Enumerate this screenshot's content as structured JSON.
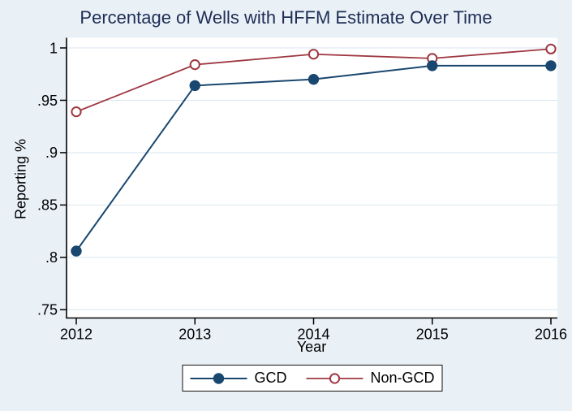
{
  "figure": {
    "background_color": "#e9f1f7",
    "plot_background": "#ffffff",
    "grid_color": "#d9e6f0",
    "axis_color": "#000000",
    "title_color": "#1e2d55"
  },
  "chart_data": {
    "type": "line",
    "title": "Percentage of Wells with HFFM Estimate Over Time",
    "xlabel": "Year",
    "ylabel": "Reporting %",
    "x": [
      2012,
      2013,
      2014,
      2015,
      2016
    ],
    "xtick_labels": [
      "2012",
      "2013",
      "2014",
      "2015",
      "2016"
    ],
    "ylim": [
      0.75,
      1.005
    ],
    "yticks": [
      0.75,
      0.8,
      0.85,
      0.9,
      0.95,
      1
    ],
    "ytick_labels": [
      ".75",
      ".8",
      ".85",
      ".9",
      ".95",
      "1"
    ],
    "grid": true,
    "legend_position": "bottom-center",
    "series": [
      {
        "name": "GCD",
        "marker": "filled-circle",
        "color": "#1a476f",
        "values": [
          0.806,
          0.964,
          0.97,
          0.983,
          0.983
        ]
      },
      {
        "name": "Non-GCD",
        "marker": "open-circle",
        "color": "#9e3741",
        "values": [
          0.939,
          0.984,
          0.994,
          0.99,
          0.999
        ]
      }
    ]
  }
}
